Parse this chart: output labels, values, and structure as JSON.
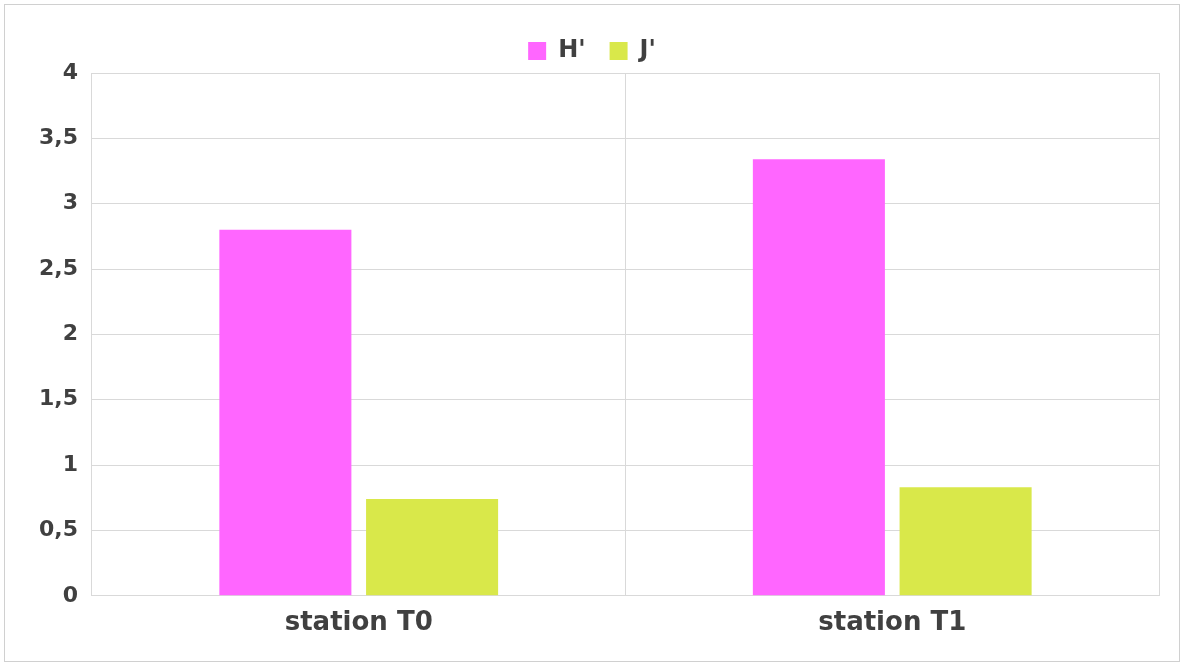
{
  "chart_data": {
    "type": "bar",
    "categories": [
      "station T0",
      "station T1"
    ],
    "series": [
      {
        "name": "H'",
        "color": "#ff66ff",
        "values": [
          2.8,
          3.34
        ]
      },
      {
        "name": "J'",
        "color": "#d9e84a",
        "values": [
          0.74,
          0.83
        ]
      }
    ],
    "ylim": [
      0,
      4
    ],
    "yticks": [
      0,
      {
        "value": 0.5,
        "label": "0,5"
      },
      1,
      {
        "value": 1.5,
        "label": "1,5"
      },
      2,
      {
        "value": 2.5,
        "label": "2,5"
      },
      3,
      {
        "value": 3.5,
        "label": "3,5"
      },
      4
    ],
    "grid": true,
    "legend": "top"
  }
}
